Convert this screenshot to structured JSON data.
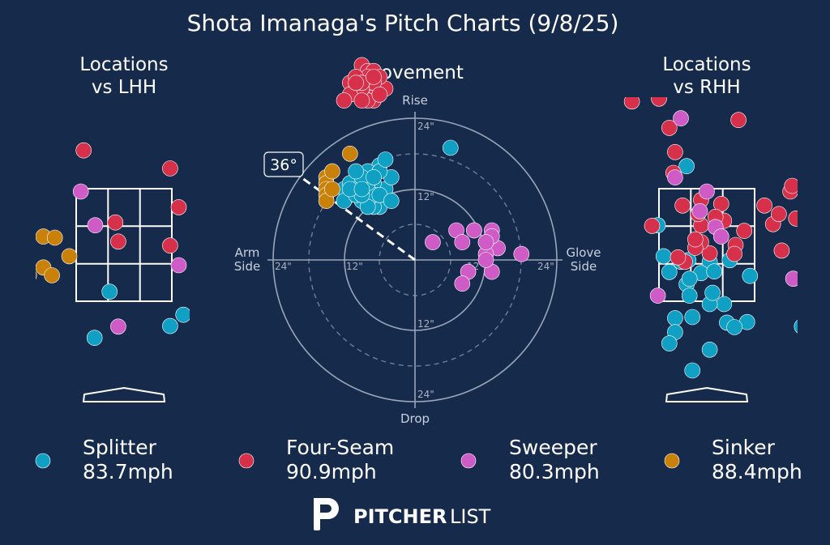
{
  "colors": {
    "background": "#162a4c",
    "Splitter": "#0fa0c4",
    "Four-Seam": "#d6304a",
    "Sweeper": "#cf5cc6",
    "Sinker": "#c9810a"
  },
  "chart_data": {
    "type": "scatter",
    "title": "Shota Imanaga's Pitch Charts (9/8/25)",
    "panels": {
      "lhh": {
        "title_line1": "Locations",
        "title_line2": "vs LHH"
      },
      "movement": {
        "title": "Movement",
        "top_label": "Rise",
        "bottom_label": "Drop",
        "left_label_line1": "Arm",
        "left_label_line2": "Side",
        "right_label_line1": "Glove",
        "right_label_line2": "Side",
        "ring_labels": {
          "r12": "12\"",
          "r24": "24\""
        },
        "arm_angle_label": "36°",
        "arm_angle_deg": 36
      },
      "rhh": {
        "title_line1": "Locations",
        "title_line2": "vs RHH"
      }
    },
    "legend": [
      {
        "name": "Splitter",
        "speed": "83.7mph"
      },
      {
        "name": "Four-Seam",
        "speed": "90.9mph"
      },
      {
        "name": "Sweeper",
        "speed": "80.3mph"
      },
      {
        "name": "Sinker",
        "speed": "88.4mph"
      }
    ],
    "brand": {
      "bold": "PITCHER",
      "light": "LIST"
    },
    "series": [
      {
        "name": "Splitter",
        "lhh": [
          [
            -0.25,
            1.67
          ],
          [
            1.03,
            1.26
          ],
          [
            -0.51,
            0.85
          ],
          [
            0.8,
            1.06
          ],
          [
            1.35,
            1.04
          ],
          [
            1.55,
            0.98
          ]
        ],
        "rhh": [
          [
            -0.85,
            2.85
          ],
          [
            -0.75,
            2.3
          ],
          [
            -0.32,
            2.23
          ],
          [
            -0.65,
            2.02
          ],
          [
            -0.45,
            2.2
          ],
          [
            0.05,
            2.2
          ],
          [
            -0.35,
            1.8
          ],
          [
            -0.1,
            2.0
          ],
          [
            0.75,
            1.95
          ],
          [
            0.4,
            2.23
          ],
          [
            0.3,
            1.45
          ],
          [
            0.35,
            1.12
          ],
          [
            0.05,
            1.45
          ],
          [
            -0.3,
            1.6
          ],
          [
            -0.55,
            1.2
          ],
          [
            0.7,
            1.13
          ],
          [
            0.13,
            2.03
          ],
          [
            -0.55,
            0.95
          ],
          [
            0.48,
            1.04
          ],
          [
            -0.3,
            1.9
          ],
          [
            1.65,
            1.05
          ],
          [
            -0.65,
            0.75
          ],
          [
            -0.25,
            1.22
          ],
          [
            0.1,
            1.65
          ],
          [
            -0.35,
            3.9
          ],
          [
            0.05,
            0.64
          ],
          [
            -0.25,
            0.27
          ]
        ],
        "movement": [
          [
            -8,
            14
          ],
          [
            -6,
            16
          ],
          [
            -7,
            12
          ],
          [
            -9,
            12
          ],
          [
            -10,
            13
          ],
          [
            -11,
            11
          ],
          [
            -12,
            12
          ],
          [
            -5,
            12
          ],
          [
            -8,
            10
          ],
          [
            -9,
            10
          ],
          [
            -6,
            10
          ],
          [
            -6,
            9
          ],
          [
            -7,
            13
          ],
          [
            -4,
            14
          ],
          [
            -8,
            15
          ],
          [
            -11,
            13
          ],
          [
            -10,
            12
          ],
          [
            -12,
            10
          ],
          [
            -7,
            9
          ],
          [
            -10,
            11
          ],
          [
            -6,
            15
          ],
          [
            -7,
            11
          ],
          [
            -8,
            13
          ],
          [
            -9,
            14
          ],
          [
            -8,
            9
          ],
          [
            -9,
            11
          ],
          [
            -5,
            17
          ],
          [
            -10,
            15
          ],
          [
            -11,
            12
          ],
          [
            -7,
            14
          ],
          [
            -9,
            12
          ],
          [
            -6,
            11
          ],
          [
            -4,
            10
          ],
          [
            6,
            19
          ]
        ]
      },
      {
        "name": "Four-Seam",
        "lhh": [
          [
            -0.7,
            4.18
          ],
          [
            0.8,
            3.86
          ],
          [
            0.95,
            3.17
          ],
          [
            -0.1,
            2.56
          ],
          [
            0.8,
            2.49
          ],
          [
            -0.15,
            2.9
          ]
        ],
        "rhh": [
          [
            -1.3,
            5.05
          ],
          [
            -0.83,
            5.1
          ],
          [
            -0.65,
            4.58
          ],
          [
            -0.55,
            4.15
          ],
          [
            0.55,
            4.72
          ],
          [
            -0.58,
            3.78
          ],
          [
            -0.42,
            3.2
          ],
          [
            1.0,
            3.2
          ],
          [
            -0.1,
            3.3
          ],
          [
            0.25,
            3.23
          ],
          [
            0.65,
            2.75
          ],
          [
            -0.1,
            2.85
          ],
          [
            -0.15,
            3.05
          ],
          [
            0.3,
            2.93
          ],
          [
            0.15,
            3.0
          ],
          [
            0.5,
            2.5
          ],
          [
            1.3,
            2.4
          ],
          [
            1.55,
            2.97
          ],
          [
            1.45,
            3.45
          ],
          [
            1.75,
            2.85
          ],
          [
            -0.38,
            2.2
          ],
          [
            0.05,
            2.35
          ],
          [
            -0.1,
            2.55
          ],
          [
            -0.2,
            2.45
          ],
          [
            0.48,
            2.34
          ],
          [
            -0.5,
            2.28
          ],
          [
            1.15,
            2.87
          ],
          [
            -0.95,
            2.84
          ],
          [
            1.25,
            3.05
          ],
          [
            -0.2,
            2.6
          ],
          [
            1.48,
            3.55
          ]
        ],
        "movement": [
          [
            -9,
            33
          ],
          [
            -7,
            29
          ],
          [
            -5,
            29
          ],
          [
            -8,
            30
          ],
          [
            -8,
            32
          ],
          [
            -10,
            31
          ],
          [
            -7,
            32
          ],
          [
            -9,
            28
          ],
          [
            -7,
            27
          ],
          [
            -11,
            30
          ],
          [
            -10,
            29
          ],
          [
            -6,
            31
          ],
          [
            -8,
            27
          ],
          [
            -7,
            30
          ],
          [
            -9,
            29
          ],
          [
            -11,
            28
          ],
          [
            -8,
            31
          ],
          [
            -6,
            28
          ],
          [
            -12,
            27
          ],
          [
            -10,
            31
          ],
          [
            -9,
            30
          ],
          [
            -7,
            31
          ],
          [
            -10,
            30
          ],
          [
            -9,
            27
          ]
        ]
      },
      {
        "name": "Sweeper",
        "lhh": [
          [
            -0.75,
            3.45
          ],
          [
            -0.5,
            2.85
          ],
          [
            0.95,
            2.14
          ],
          [
            1.4,
            1.95
          ],
          [
            1.3,
            1.12
          ],
          [
            -0.1,
            1.05
          ]
        ],
        "rhh": [
          [
            -0.45,
            4.75
          ],
          [
            -0.55,
            3.7
          ],
          [
            0.0,
            3.45
          ],
          [
            -0.85,
            1.6
          ],
          [
            1.5,
            1.9
          ],
          [
            -0.12,
            3.1
          ],
          [
            0.15,
            2.82
          ],
          [
            0.25,
            2.65
          ]
        ],
        "movement": [
          [
            3,
            3
          ],
          [
            7,
            5
          ],
          [
            10,
            5
          ],
          [
            13,
            5
          ],
          [
            10,
            5
          ],
          [
            12,
            3
          ],
          [
            8,
            3
          ],
          [
            14,
            2
          ],
          [
            12,
            1
          ],
          [
            18,
            1
          ],
          [
            13,
            4
          ],
          [
            12,
            3
          ],
          [
            9,
            -2
          ],
          [
            13,
            -2
          ],
          [
            8,
            -4
          ],
          [
            12,
            0
          ]
        ]
      },
      {
        "name": "Sinker",
        "lhh": [
          [
            -1.4,
            2.65
          ],
          [
            -1.2,
            2.63
          ],
          [
            -0.95,
            2.3
          ],
          [
            -1.4,
            2.1
          ],
          [
            -1.65,
            1.96
          ],
          [
            -1.25,
            1.96
          ]
        ],
        "rhh": [],
        "movement": [
          [
            -15,
            14
          ],
          [
            -15,
            13
          ],
          [
            -14,
            15
          ],
          [
            -15,
            12
          ],
          [
            -15,
            11
          ],
          [
            -11,
            18
          ],
          [
            -15,
            10
          ],
          [
            -14,
            12
          ]
        ]
      }
    ]
  }
}
